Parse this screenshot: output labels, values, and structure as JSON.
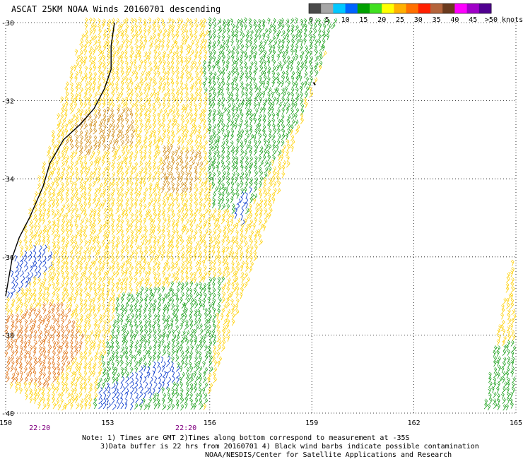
{
  "title": "ASCAT 25KM NOAA Winds 20160701 descending",
  "colorbar": {
    "colors": [
      "#4a4a4a",
      "#a6a6a6",
      "#00c8ff",
      "#0064ff",
      "#00a000",
      "#40e020",
      "#ffff00",
      "#ffb000",
      "#ff7000",
      "#ff2000",
      "#b4643c",
      "#6a3a1e",
      "#ff00ff",
      "#a000c8",
      "#500090"
    ],
    "labels": [
      {
        "text": "0",
        "value": 0
      },
      {
        "text": "5",
        "value": 5
      },
      {
        "text": "10",
        "value": 10
      },
      {
        "text": "15",
        "value": 15
      },
      {
        "text": "20",
        "value": 20
      },
      {
        "text": "25",
        "value": 25
      },
      {
        "text": "30",
        "value": 30
      },
      {
        "text": "35",
        "value": 35
      },
      {
        "text": "40",
        "value": 40
      },
      {
        "text": "45",
        "value": 45
      },
      {
        "text": ">50 knots",
        "value": 50
      }
    ]
  },
  "map": {
    "lon_range": [
      150,
      165
    ],
    "lat_range": [
      -40,
      -30
    ],
    "lon_ticks": [
      {
        "lon": 150,
        "label": "150"
      },
      {
        "lon": 153,
        "label": "153"
      },
      {
        "lon": 156,
        "label": "156"
      },
      {
        "lon": 159,
        "label": "159"
      },
      {
        "lon": 162,
        "label": "162"
      },
      {
        "lon": 165,
        "label": "165"
      }
    ],
    "lat_ticks": [
      {
        "lat": -30,
        "label": "-30"
      },
      {
        "lat": -32,
        "label": "-32"
      },
      {
        "lat": -34,
        "label": "-34"
      },
      {
        "lat": -36,
        "label": "-36"
      },
      {
        "lat": -38,
        "label": "-38"
      },
      {
        "lat": -40,
        "label": "-40"
      }
    ],
    "pass_times": [
      {
        "lon": 151,
        "text": "22:20"
      },
      {
        "lon": 155.3,
        "text": "22:20"
      }
    ],
    "time_color": "#800080",
    "swaths": [
      {
        "name": "main-swath",
        "poly": [
          [
            152.3,
            -30
          ],
          [
            159.7,
            -30
          ],
          [
            155.8,
            -40
          ],
          [
            151,
            -40
          ],
          [
            150,
            -39.3
          ],
          [
            150,
            -37
          ]
        ]
      },
      {
        "name": "east-swath",
        "poly": [
          [
            164.8,
            -36.2
          ],
          [
            165,
            -36.2
          ],
          [
            165,
            -40
          ],
          [
            164,
            -40
          ],
          [
            164.2,
            -39
          ]
        ]
      }
    ],
    "wind_regions": [
      {
        "color": "#d08a10",
        "poly": [
          [
            152.3,
            -32.4
          ],
          [
            153.8,
            -32.2
          ],
          [
            153.7,
            -33.2
          ],
          [
            152.2,
            -33.5
          ],
          [
            151.7,
            -33.2
          ]
        ]
      },
      {
        "color": "#d08a10",
        "poly": [
          [
            154.5,
            -33.2
          ],
          [
            155.8,
            -33.4
          ],
          [
            155.5,
            -34.4
          ],
          [
            154.6,
            -34.5
          ]
        ]
      },
      {
        "color": "#e07010",
        "poly": [
          [
            150,
            -37.6
          ],
          [
            151.6,
            -37.2
          ],
          [
            152.3,
            -38.3
          ],
          [
            151.3,
            -39.4
          ],
          [
            150,
            -39.3
          ]
        ]
      },
      {
        "color": "#ffd000",
        "poly": [
          [
            150.3,
            -34.4
          ],
          [
            152.5,
            -33.8
          ],
          [
            153.5,
            -35.4
          ],
          [
            152,
            -35.8
          ],
          [
            150.3,
            -36.6
          ]
        ]
      },
      {
        "color": "#1aa01a",
        "poly": [
          [
            155.9,
            -30
          ],
          [
            159.7,
            -30
          ],
          [
            158.6,
            -32.5
          ],
          [
            157,
            -35
          ],
          [
            156,
            -34.8
          ],
          [
            155.8,
            -31.5
          ]
        ]
      },
      {
        "color": "#1aa01a",
        "poly": [
          [
            153.3,
            -37
          ],
          [
            156.4,
            -36.6
          ],
          [
            155.8,
            -40
          ],
          [
            152.5,
            -40
          ]
        ]
      },
      {
        "color": "#0033cc",
        "poly": [
          [
            150,
            -36.2
          ],
          [
            151.2,
            -35.7
          ],
          [
            151.3,
            -36.3
          ],
          [
            150,
            -37.2
          ]
        ]
      },
      {
        "color": "#0033cc",
        "poly": [
          [
            152.6,
            -39.5
          ],
          [
            154.8,
            -38.6
          ],
          [
            155.2,
            -39.2
          ],
          [
            153.6,
            -40
          ],
          [
            152.6,
            -40
          ]
        ]
      },
      {
        "color": "#0033cc",
        "poly": [
          [
            156.8,
            -34.5
          ],
          [
            157.2,
            -34.3
          ],
          [
            156.9,
            -35.3
          ],
          [
            156.6,
            -35
          ]
        ]
      },
      {
        "color": "#1aa01a",
        "poly": [
          [
            164.1,
            -38.4
          ],
          [
            165,
            -38.2
          ],
          [
            165,
            -40
          ],
          [
            164,
            -40
          ]
        ]
      }
    ],
    "default_wind_color": "#ffd000",
    "coastline": [
      [
        153.2,
        -30
      ],
      [
        153.1,
        -30.6
      ],
      [
        153.1,
        -31.2
      ],
      [
        152.9,
        -31.7
      ],
      [
        152.6,
        -32.2
      ],
      [
        152.2,
        -32.6
      ],
      [
        151.7,
        -33.0
      ],
      [
        151.3,
        -33.6
      ],
      [
        151.1,
        -34.2
      ],
      [
        150.9,
        -34.6
      ],
      [
        150.7,
        -35.0
      ],
      [
        150.4,
        -35.5
      ],
      [
        150.2,
        -36.0
      ],
      [
        150.1,
        -36.5
      ],
      [
        150.0,
        -37.0
      ]
    ],
    "coast_island": [
      [
        159.05,
        -31.53
      ],
      [
        159.1,
        -31.6
      ]
    ]
  },
  "notes": [
    "Note: 1) Times are GMT 2)Times along bottom correspond to measurement at -35S",
    "3)Data buffer is 22 hrs from 20160701 4) Black wind barbs indicate possible contamination",
    "NOAA/NESDIS/Center for Satellite Applications and Research"
  ]
}
